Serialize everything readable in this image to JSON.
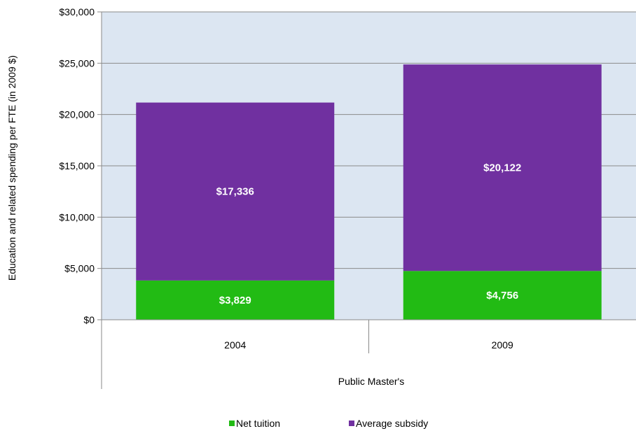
{
  "chart_data": {
    "type": "bar",
    "stacked": true,
    "categories": [
      "2004",
      "2009"
    ],
    "group_label": "Public Master's",
    "series": [
      {
        "name": "Net tuition",
        "values": [
          3829,
          4756
        ],
        "labels": [
          "$3,829",
          "$4,756"
        ],
        "color": "#22bb14"
      },
      {
        "name": "Average subsidy",
        "values": [
          17336,
          20122
        ],
        "labels": [
          "$17,336",
          "$20,122"
        ],
        "color": "#7030a0"
      }
    ],
    "ylabel": "Education and related spending per FTE (in 2009 $)",
    "xlabel": "",
    "ylim": [
      0,
      30000
    ],
    "yticks": [
      0,
      5000,
      10000,
      15000,
      20000,
      25000,
      30000
    ],
    "ytick_labels": [
      "$0",
      "$5,000",
      "$10,000",
      "$15,000",
      "$20,000",
      "$25,000",
      "$30,000"
    ],
    "grid": true,
    "plot_background": "#dce6f2",
    "legend_position": "bottom"
  }
}
